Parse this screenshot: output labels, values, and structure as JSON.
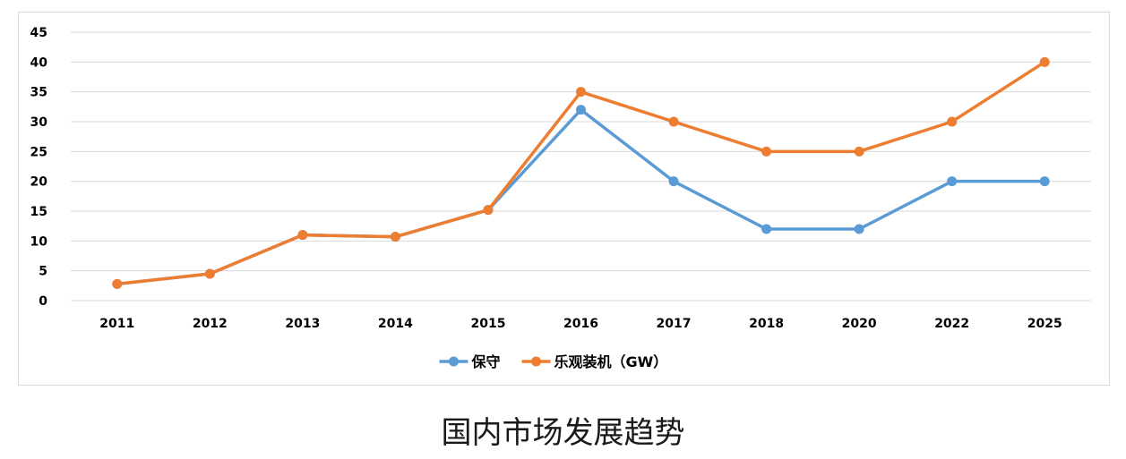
{
  "caption": "国内市场发展趋势",
  "chart_data": {
    "type": "line",
    "categories": [
      "2011",
      "2012",
      "2013",
      "2014",
      "2015",
      "2016",
      "2017",
      "2018",
      "2020",
      "2022",
      "2025"
    ],
    "series": [
      {
        "name": "保守",
        "color": "#5b9bd5",
        "values": [
          2.8,
          4.5,
          11,
          10.7,
          15.2,
          32,
          20,
          12,
          12,
          20,
          20
        ]
      },
      {
        "name": "乐观装机（GW）",
        "color": "#ed7d31",
        "values": [
          2.8,
          4.5,
          11,
          10.7,
          15.2,
          35,
          30,
          25,
          25,
          30,
          40
        ]
      }
    ],
    "ylim": [
      0,
      45
    ],
    "yticks": [
      "0",
      "5",
      "10",
      "15",
      "20",
      "25",
      "30",
      "35",
      "40",
      "45"
    ],
    "grid": true,
    "legend_position": "bottom",
    "gridline_color": "#d9d9d9"
  }
}
